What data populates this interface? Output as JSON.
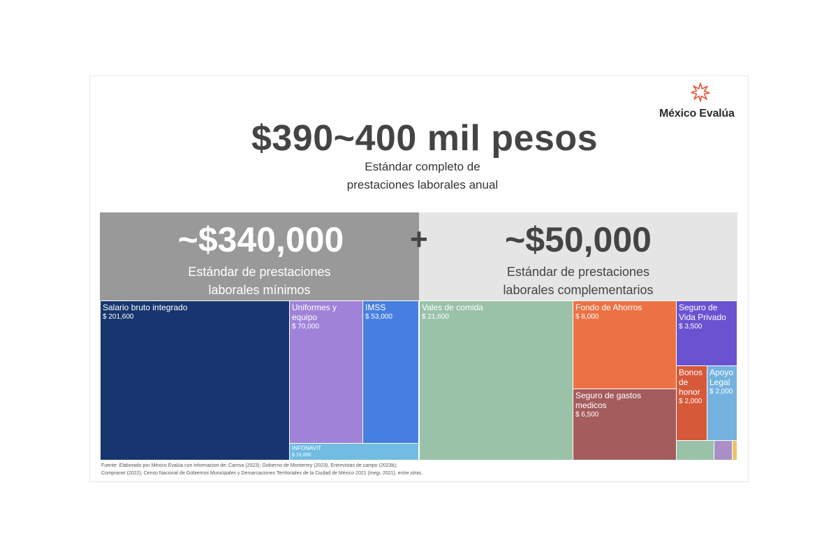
{
  "brand": {
    "name": "México Evalúa",
    "accent": "#e8543a"
  },
  "header": {
    "title": "$390~400 mil pesos",
    "subtitle_line1": "Estándar completo de",
    "subtitle_line2": "prestaciones laborales anual"
  },
  "bands": {
    "minimum": {
      "value": "~$340,000",
      "label_line1": "Estándar de prestaciones",
      "label_line2": "laborales mínimos",
      "color": "#999999"
    },
    "operator": "+",
    "complementary": {
      "value": "~$50,000",
      "label_line1": "Estándar de prestaciones",
      "label_line2": "laborales complementarios",
      "color": "#e5e5e5"
    }
  },
  "chart_data": {
    "type": "treemap",
    "groups": [
      {
        "name": "Estándar de prestaciones laborales mínimos",
        "items": [
          {
            "name": "Salario bruto integrado",
            "value": 201600,
            "display": "$ 201,600",
            "color": "#17366f"
          },
          {
            "name": "Uniformes y equipo",
            "value": 70000,
            "display": "$ 70,000",
            "color": "#a083d9"
          },
          {
            "name": "IMSS",
            "value": 53000,
            "display": "$ 53,000",
            "color": "#477fe0"
          },
          {
            "name": "INFONAVIT",
            "value": 15000,
            "display": "$ 15,000",
            "color": "#70bce3"
          }
        ]
      },
      {
        "name": "Estándar de prestaciones laborales complementarios",
        "items": [
          {
            "name": "Vales de comida",
            "value": 21600,
            "display": "$ 21,600",
            "color": "#9ac2a8"
          },
          {
            "name": "Fondo de Ahorros",
            "value": 8000,
            "display": "$ 8,000",
            "color": "#ec7244"
          },
          {
            "name": "Seguro de gastos medicos",
            "value": 6500,
            "display": "$ 6,500",
            "color": "#a55c5c"
          },
          {
            "name": "Seguro de Vida Privado",
            "value": 3500,
            "display": "$ 3,500",
            "color": "#6a53d1"
          },
          {
            "name": "Bonos de honor",
            "value": 2000,
            "display": "$ 2,000",
            "color": "#d6593a"
          },
          {
            "name": "Apoyo Legal",
            "value": 2000,
            "display": "$ 2,000",
            "color": "#74b3e0"
          },
          {
            "name": "",
            "value": null,
            "display": "",
            "color": "#9ac2a8"
          },
          {
            "name": "",
            "value": null,
            "display": "",
            "color": "#a98fc6"
          },
          {
            "name": "",
            "value": null,
            "display": "",
            "color": "#e9c46a"
          }
        ]
      }
    ]
  },
  "source": {
    "line1": "Fuente: Elaborado por México Evalúa con informacion de: Camsa (2023); Gobierno de Monterrey (2023), Entrevistas de campo (2023b);",
    "line2": "Compranet (2022); Censo Nacional de Gobiernos Municipales y Demarcaciones Territoriales de la Ciudad de México 2021 (Inegi, 2021), entre otras."
  }
}
